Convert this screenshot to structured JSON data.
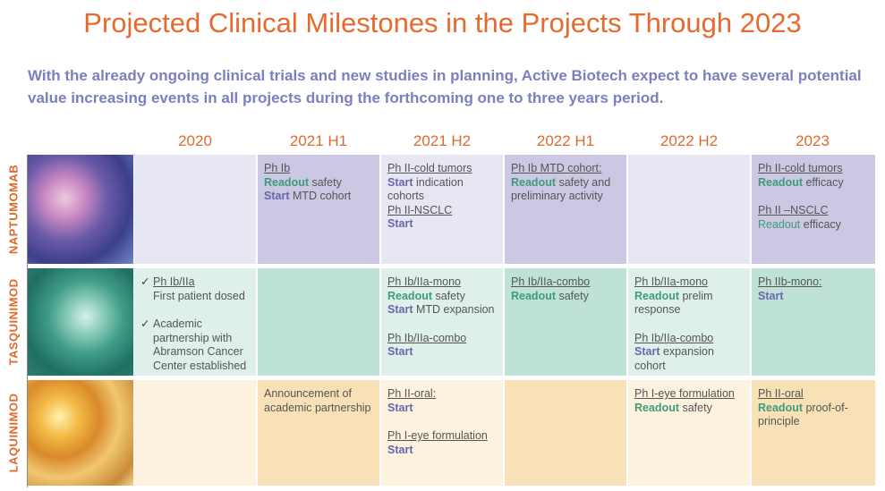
{
  "title": "Projected Clinical Milestones in the Projects Through 2023",
  "subtitle": "With the already ongoing clinical trials and new studies in planning, Active Biotech expect to have several potential value increasing events in all projects during the forthcoming one to three years period.",
  "columns": [
    "2020",
    "2021 H1",
    "2021 H2",
    "2022 H1",
    "2022 H2",
    "2023"
  ],
  "rows": [
    {
      "label": "NAPTUMOMAB",
      "cells": [
        [],
        [
          {
            "lines": [
              [
                {
                  "style": "link",
                  "text": "Ph Ib"
                }
              ],
              [
                {
                  "style": "readout",
                  "text": "Readout"
                },
                {
                  "style": "plain",
                  "text": "safety"
                }
              ],
              [
                {
                  "style": "start",
                  "text": "Start"
                },
                {
                  "style": "plain",
                  "text": "MTD cohort"
                }
              ]
            ]
          }
        ],
        [
          {
            "lines": [
              [
                {
                  "style": "link",
                  "text": "Ph II-cold tumors"
                }
              ],
              [
                {
                  "style": "start",
                  "text": "Start"
                },
                {
                  "style": "plain",
                  "text": "indication cohorts"
                }
              ],
              [
                {
                  "style": "link",
                  "text": "Ph II-NSCLC"
                }
              ],
              [
                {
                  "style": "start",
                  "text": "Start"
                }
              ]
            ]
          }
        ],
        [
          {
            "lines": [
              [
                {
                  "style": "link",
                  "text": "Ph Ib MTD cohort:"
                }
              ],
              [
                {
                  "style": "readout",
                  "text": "Readout"
                },
                {
                  "style": "plain",
                  "text": "safety and preliminary activity"
                }
              ]
            ]
          }
        ],
        [],
        [
          {
            "lines": [
              [
                {
                  "style": "link",
                  "text": "Ph II-cold tumors"
                }
              ],
              [
                {
                  "style": "readout",
                  "text": "Readout"
                },
                {
                  "style": "plain",
                  "text": "efficacy"
                }
              ]
            ]
          },
          {
            "lines": [
              [
                {
                  "style": "link",
                  "text": "Ph II –NSCLC"
                }
              ],
              [
                {
                  "style": "readout-light",
                  "text": "Readout"
                },
                {
                  "style": "plain",
                  "text": "efficacy"
                }
              ]
            ]
          }
        ]
      ]
    },
    {
      "label": "TASQUINIMOD",
      "cells": [
        [
          {
            "check": true,
            "lines": [
              [
                {
                  "style": "link",
                  "text": "Ph Ib/IIa"
                }
              ],
              [
                {
                  "style": "plain",
                  "text": "First patient dosed"
                }
              ]
            ]
          },
          {
            "check": true,
            "lines": [
              [
                {
                  "style": "plain",
                  "text": "Academic partnership with Abramson Cancer Center established"
                }
              ]
            ]
          }
        ],
        [],
        [
          {
            "lines": [
              [
                {
                  "style": "link",
                  "text": "Ph Ib/IIa-mono"
                }
              ],
              [
                {
                  "style": "readout",
                  "text": "Readout"
                },
                {
                  "style": "plain",
                  "text": "safety"
                }
              ],
              [
                {
                  "style": "start",
                  "text": "Start"
                },
                {
                  "style": "plain",
                  "text": "MTD expansion"
                }
              ]
            ]
          },
          {
            "lines": [
              [
                {
                  "style": "link",
                  "text": "Ph Ib/IIa-combo"
                }
              ],
              [
                {
                  "style": "start",
                  "text": "Start"
                }
              ]
            ]
          }
        ],
        [
          {
            "lines": [
              [
                {
                  "style": "link",
                  "text": "Ph Ib/IIa-combo"
                }
              ],
              [
                {
                  "style": "readout",
                  "text": "Readout"
                },
                {
                  "style": "plain",
                  "text": "safety"
                }
              ]
            ]
          }
        ],
        [
          {
            "lines": [
              [
                {
                  "style": "link",
                  "text": "Ph Ib/IIa-mono"
                }
              ],
              [
                {
                  "style": "readout",
                  "text": "Readout"
                },
                {
                  "style": "plain",
                  "text": "prelim response"
                }
              ]
            ]
          },
          {
            "lines": [
              [
                {
                  "style": "link",
                  "text": "Ph Ib/IIa-combo"
                }
              ],
              [
                {
                  "style": "start",
                  "text": "Start"
                },
                {
                  "style": "plain",
                  "text": "expansion cohort"
                }
              ]
            ]
          }
        ],
        [
          {
            "lines": [
              [
                {
                  "style": "link",
                  "text": "Ph IIb-mono:"
                }
              ],
              [
                {
                  "style": "start",
                  "text": "Start"
                }
              ]
            ]
          }
        ]
      ]
    },
    {
      "label": "LAQUINIMOD",
      "cells": [
        [],
        [
          {
            "lines": [
              [
                {
                  "style": "plain",
                  "text": "Announcement of academic partnership"
                }
              ]
            ]
          }
        ],
        [
          {
            "lines": [
              [
                {
                  "style": "link",
                  "text": "Ph II-oral:"
                }
              ],
              [
                {
                  "style": "start",
                  "text": "Start"
                }
              ]
            ]
          },
          {
            "lines": [
              [
                {
                  "style": "link",
                  "text": "Ph I-eye formulation"
                }
              ],
              [
                {
                  "style": "start",
                  "text": "Start"
                }
              ]
            ]
          }
        ],
        [],
        [
          {
            "lines": [
              [
                {
                  "style": "link",
                  "text": "Ph I-eye formulation"
                }
              ],
              [
                {
                  "style": "readout",
                  "text": "Readout"
                },
                {
                  "style": "plain",
                  "text": "safety"
                }
              ]
            ]
          }
        ],
        [
          {
            "lines": [
              [
                {
                  "style": "link",
                  "text": "Ph II-oral"
                }
              ],
              [
                {
                  "style": "readout",
                  "text": "Readout"
                },
                {
                  "style": "plain",
                  "text": "proof-of-principle"
                }
              ]
            ]
          }
        ]
      ]
    }
  ]
}
